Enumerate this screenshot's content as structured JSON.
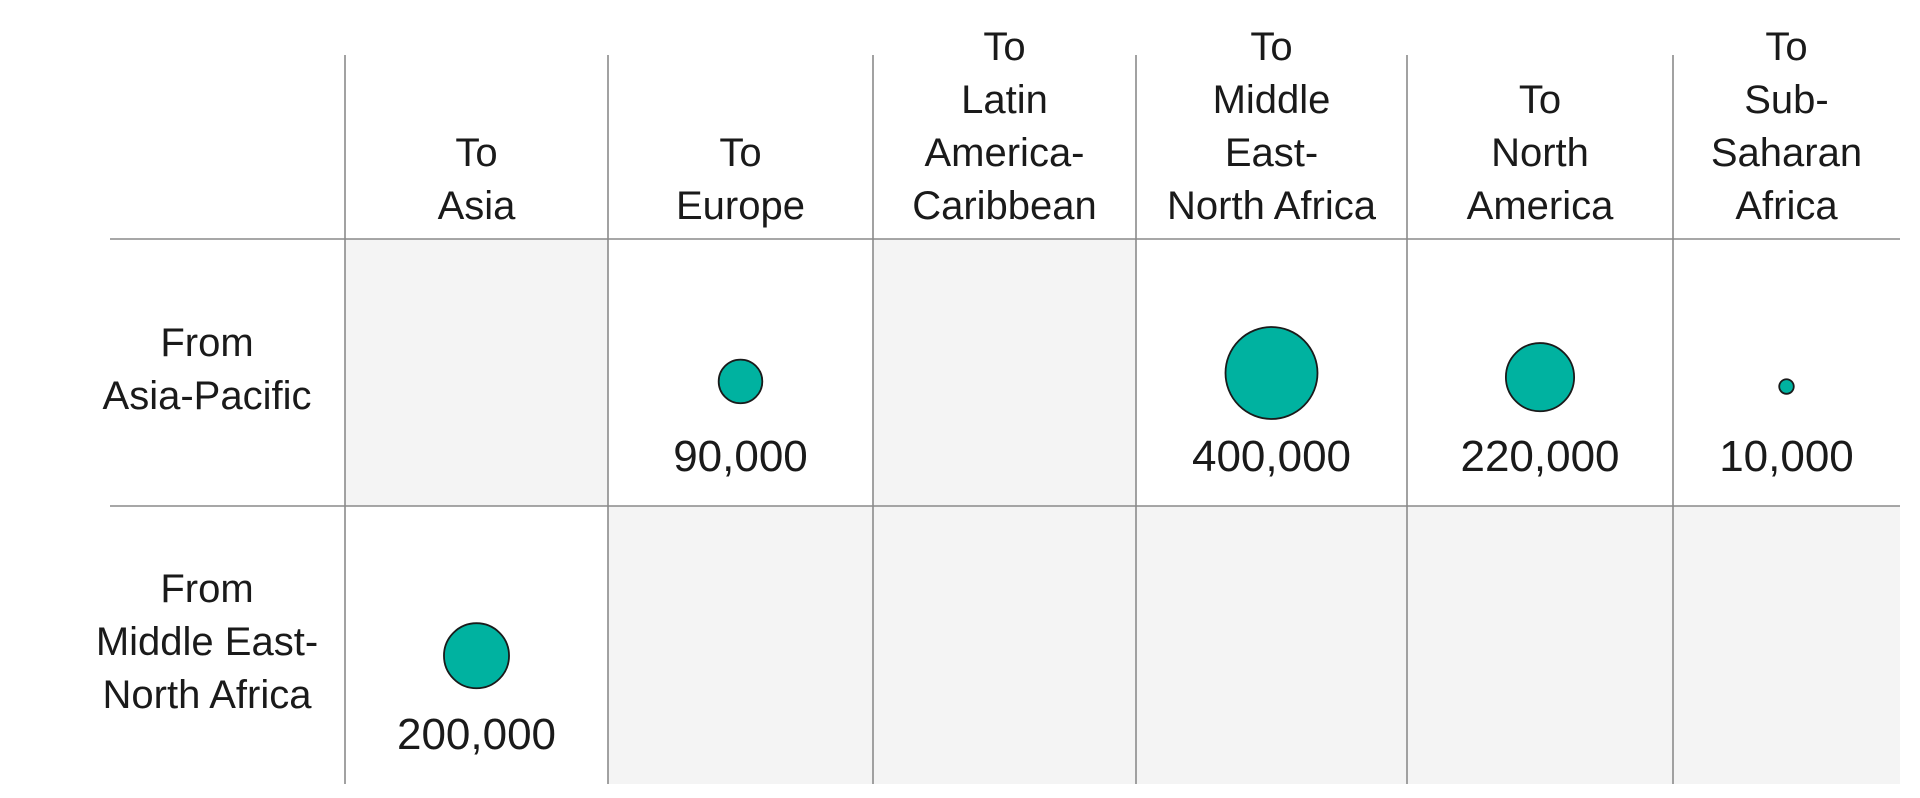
{
  "chart_data": {
    "type": "table",
    "columns": [
      [
        "To",
        "Asia"
      ],
      [
        "To",
        "Europe"
      ],
      [
        "To",
        "Latin",
        "America-",
        "Caribbean"
      ],
      [
        "To",
        "Middle",
        "East-",
        "North Africa"
      ],
      [
        "To",
        "North",
        "America"
      ],
      [
        "To",
        "Sub-",
        "Saharan",
        "Africa"
      ]
    ],
    "rows": [
      {
        "label": [
          "From",
          "Asia-Pacific"
        ],
        "values": [
          null,
          90000,
          null,
          400000,
          220000,
          10000
        ],
        "labels": [
          "",
          "90,000",
          "",
          "400,000",
          "220,000",
          "10,000"
        ]
      },
      {
        "label": [
          "From",
          "Middle East-",
          "North Africa"
        ],
        "values": [
          200000,
          null,
          null,
          null,
          null,
          null
        ],
        "labels": [
          "200,000",
          "",
          "",
          "",
          "",
          ""
        ]
      }
    ],
    "bubble_color": "#00b2a0",
    "empty_cell_color": "#f4f4f4",
    "grid_color": "#8a8a8a"
  }
}
